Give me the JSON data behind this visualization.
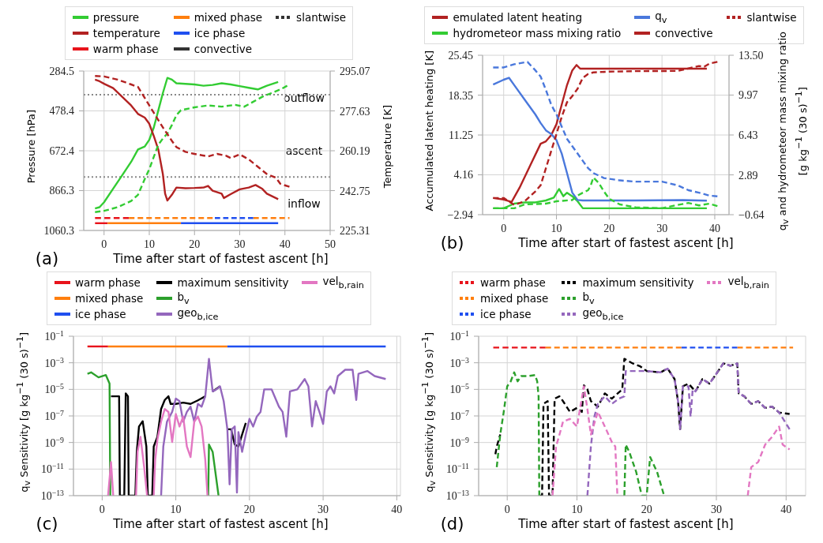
{
  "chart_data": [
    {
      "type": "line",
      "xlabel": "Time after start of fastest ascent [h]",
      "ylabel": "Pressure [hPa]",
      "y2label": "Temperature [K]",
      "legend": "top",
      "grid": true,
      "xlim": [
        -4.5,
        50
      ],
      "xticks": [
        0,
        10,
        20,
        30,
        40,
        50
      ],
      "ylim": [
        1060.3,
        284.5
      ],
      "yticks": [
        284.5,
        478.4,
        672.4,
        866.3,
        1060.3
      ],
      "y2lim": [
        225.31,
        295.07
      ],
      "y2ticks": [
        225.31,
        242.75,
        260.19,
        277.63,
        295.07
      ],
      "ref_lines": [
        {
          "axis": "y",
          "value": 400,
          "color": "#888888",
          "line_style": "dotted"
        },
        {
          "axis": "y",
          "value": 800,
          "color": "#888888",
          "line_style": "dotted"
        }
      ],
      "annotations": [
        "(a)",
        "outflow",
        "ascent",
        "inflow"
      ],
      "series": [
        {
          "name": "pressure",
          "color": "#33cc33",
          "line_style": "solid",
          "x": [
            -2,
            -1,
            0,
            2,
            4,
            6,
            7.5,
            9,
            10,
            11,
            12,
            13,
            14,
            15,
            16,
            18,
            20,
            22,
            24,
            26,
            28,
            30,
            32,
            34,
            36,
            38.5
          ],
          "values": [
            953,
            947,
            923,
            857,
            792,
            726,
            666,
            652,
            619,
            559,
            476,
            392,
            318,
            326,
            344,
            347,
            350,
            356,
            352,
            344,
            350,
            358,
            366,
            374,
            356,
            338
          ]
        },
        {
          "name": "temperature",
          "color": "#b22222",
          "line_style": "solid",
          "axis": "y2",
          "x": [
            -2,
            -1,
            0,
            2,
            4,
            6,
            7.5,
            9,
            10,
            11,
            12,
            13,
            13.5,
            14,
            15,
            16,
            18,
            20,
            22,
            23,
            24,
            26,
            26.5,
            28,
            30,
            32,
            33.5,
            35,
            36,
            38.5
          ],
          "values": [
            291.3,
            290.6,
            289.5,
            287.6,
            283.8,
            280.0,
            276.3,
            274.7,
            272.0,
            266.6,
            260.7,
            250.0,
            241.4,
            238.4,
            240.9,
            244.1,
            243.8,
            243.9,
            244.1,
            244.8,
            242.7,
            241.4,
            239.5,
            241.2,
            243.3,
            244.1,
            245.2,
            243.5,
            241.4,
            239.0
          ]
        },
        {
          "name": "warm phase",
          "color": "#e8131b",
          "line_style": "solid",
          "x": [
            -2,
            0.8
          ],
          "values": [
            1025,
            1025
          ]
        },
        {
          "name": "mixed phase",
          "color": "#ff7f0e",
          "line_style": "solid",
          "x": [
            0.8,
            17
          ],
          "values": [
            1025,
            1025
          ]
        },
        {
          "name": "ice phase",
          "color": "#1f4ff0",
          "line_style": "solid",
          "x": [
            17,
            38.5
          ],
          "values": [
            1025,
            1025
          ]
        },
        {
          "name": "convective",
          "color": "#333333",
          "line_style": "solid"
        },
        {
          "name": "slantwise",
          "color": "#333333",
          "line_style": "dashed"
        },
        {
          "color": "#33cc33",
          "line_style": "dashed",
          "x": [
            -2,
            0,
            3,
            6,
            7.5,
            9,
            10,
            11,
            12,
            13,
            14,
            15,
            16,
            17,
            20,
            23,
            26,
            29,
            31,
            33,
            35,
            37,
            39,
            40.5
          ],
          "values": [
            971,
            965,
            947,
            917,
            887,
            810,
            762,
            702,
            643,
            613,
            589,
            547,
            499,
            475,
            461,
            452,
            458,
            449,
            458,
            434,
            410,
            392,
            374,
            356
          ]
        },
        {
          "color": "#b22222",
          "line_style": "dashed",
          "axis": "y2",
          "x": [
            -2,
            0,
            3,
            6,
            7.5,
            9,
            11,
            13,
            15,
            16,
            18,
            20,
            23,
            25,
            27,
            28,
            30,
            32,
            34,
            36,
            38,
            39,
            41
          ],
          "values": [
            292.9,
            292.7,
            291.3,
            289.2,
            288.1,
            283.3,
            276.8,
            270.4,
            264.5,
            261.8,
            259.7,
            258.8,
            257.7,
            258.8,
            258.0,
            257.0,
            258.6,
            256.4,
            253.2,
            250.0,
            248.4,
            245.7,
            244.4
          ]
        },
        {
          "color": "#e8131b",
          "line_style": "dashed",
          "x": [
            -2,
            5.5
          ],
          "values": [
            1000,
            1000
          ]
        },
        {
          "color": "#ff7f0e",
          "line_style": "dashed",
          "x": [
            5.5,
            24.5,
            29,
            33,
            41
          ],
          "values": [
            1000,
            1000,
            null,
            1000,
            1000
          ]
        },
        {
          "color": "#1f4ff0",
          "line_style": "dashed",
          "x": [
            24.5,
            33
          ],
          "values": [
            1000,
            1000
          ]
        }
      ]
    },
    {
      "type": "line",
      "xlabel": "Time after start of fastest ascent [h]",
      "ylabel": "Accumulated latent heating [K]",
      "y2label": "q$_{v}$ and hydrometeor mass mixing ratio\n[g kg$^{−1}$ (30 s)$^{−1}$]",
      "legend": "top",
      "grid": true,
      "xlim": [
        -4,
        42.7
      ],
      "xticks": [
        0,
        10,
        20,
        30,
        40
      ],
      "ylim": [
        -2.94,
        25.45
      ],
      "yticks": [
        {
          "value": -2.94,
          "label": "−2.94"
        },
        4.16,
        11.25,
        18.35,
        25.45
      ],
      "y2lim": [
        -0.64,
        13.5
      ],
      "y2ticks": [
        {
          "value": -0.64,
          "label": "−0.64"
        },
        2.89,
        6.43,
        9.97,
        {
          "value": 13.5,
          "label": "13.50"
        }
      ],
      "annotations": [
        "(b)"
      ],
      "series": [
        {
          "name": "emulated latent heating",
          "color": "#b22222",
          "line_style": "solid",
          "x": [
            -2,
            0,
            1.5,
            3,
            5,
            7,
            8,
            9,
            10,
            11,
            12,
            13,
            13.8,
            14.5,
            20,
            38.5
          ],
          "values": [
            0.03,
            -0.24,
            -0.67,
            1.85,
            5.77,
            9.69,
            10.12,
            11.21,
            13.17,
            16.66,
            20.14,
            22.75,
            23.71,
            23.06,
            23.06,
            23.06
          ]
        },
        {
          "name": "hydrometeor mass mixing ratio",
          "color": "#33cc33",
          "line_style": "solid",
          "axis": "y2",
          "x": [
            -2,
            0,
            2,
            4,
            6,
            8,
            9.5,
            10.5,
            11.3,
            12,
            13,
            14,
            15,
            38.5
          ],
          "values": [
            -0.07,
            -0.07,
            0.34,
            0.45,
            0.45,
            0.62,
            0.88,
            1.64,
            0.99,
            1.31,
            0.99,
            0.55,
            -0.07,
            -0.07
          ]
        },
        {
          "name": "q$_{v}$",
          "color": "#4a78dc",
          "line_style": "solid",
          "axis": "y2",
          "x": [
            -2,
            0,
            1,
            2,
            4,
            6,
            7,
            8,
            9,
            10,
            11,
            12,
            13,
            14,
            15,
            25,
            34,
            38.5
          ],
          "values": [
            10.9,
            11.33,
            11.5,
            10.85,
            9.55,
            8.25,
            7.49,
            6.84,
            6.52,
            5.97,
            4.78,
            3.05,
            1.31,
            0.66,
            0.62,
            0.62,
            0.66,
            0.6
          ]
        },
        {
          "name": "convective",
          "color": "#b22222",
          "line_style": "solid"
        },
        {
          "name": "slantwise",
          "color": "#b22222",
          "line_style": "dashed"
        },
        {
          "color": "#b22222",
          "line_style": "dashed",
          "x": [
            -2,
            0,
            2,
            4,
            6,
            7,
            8,
            9,
            10,
            11,
            12,
            13,
            14,
            15,
            16,
            17,
            20,
            25,
            33,
            35,
            37,
            38,
            39,
            40.5
          ],
          "values": [
            0.03,
            0.03,
            -1.2,
            -0.54,
            1.2,
            2.29,
            5.33,
            8.38,
            11.43,
            14.48,
            17.09,
            18.18,
            19.48,
            21.44,
            22.1,
            22.4,
            22.53,
            22.62,
            22.66,
            23.1,
            23.53,
            23.4,
            23.97,
            24.27
          ]
        },
        {
          "color": "#33cc33",
          "line_style": "dashed",
          "axis": "y2",
          "x": [
            -2,
            2,
            4,
            8,
            10,
            13,
            14,
            15,
            16,
            16.5,
            17,
            18,
            19,
            20,
            22,
            25,
            30,
            33,
            35,
            37,
            39,
            40.5
          ],
          "values": [
            -0.07,
            -0.07,
            0.27,
            0.34,
            0.55,
            0.66,
            1.05,
            1.31,
            1.53,
            1.96,
            2.66,
            2.18,
            1.42,
            0.77,
            0.27,
            0.01,
            -0.07,
            0.23,
            0.4,
            0.18,
            0.34,
            0.12
          ]
        },
        {
          "color": "#4a78dc",
          "line_style": "dashed",
          "axis": "y2",
          "x": [
            -2,
            0,
            2,
            4.5,
            6,
            7,
            8,
            9,
            10,
            11,
            12,
            13,
            14,
            15,
            16,
            17,
            19,
            22,
            25,
            30,
            33,
            35,
            37,
            39,
            40.5
          ],
          "values": [
            12.42,
            12.42,
            12.7,
            12.91,
            12.16,
            11.61,
            10.42,
            9.12,
            8.25,
            7.17,
            6.08,
            5.43,
            4.78,
            4.13,
            3.48,
            3.05,
            2.61,
            2.4,
            2.29,
            2.29,
            1.96,
            1.53,
            1.31,
            1.05,
            0.99
          ]
        }
      ]
    },
    {
      "type": "line",
      "xlabel": "Time after start of fastest ascent [h]",
      "ylabel": "q$_{v}$ Sensitivity [g kg$^{−1}$ (30 s)$^{−1}$]",
      "legend": "top",
      "grid": true,
      "log": true,
      "xlim": [
        -3.9,
        40.5
      ],
      "xticks": [
        0,
        10,
        20,
        30,
        40
      ],
      "ylim": [
        1e-13,
        0.1
      ],
      "yticks": [
        {
          "value": 1e-13,
          "label": "10$^{−13}$"
        },
        {
          "value": 1e-11,
          "label": "10$^{−11}$"
        },
        {
          "value": 1e-09,
          "label": "10$^{−9}$"
        },
        {
          "value": 1e-07,
          "label": "10$^{−7}$"
        },
        {
          "value": 1e-05,
          "label": "10$^{−5}$"
        },
        {
          "value": 0.001,
          "label": "10$^{−3}$"
        },
        {
          "value": 0.1,
          "label": "10$^{−1}$"
        }
      ],
      "annotations": [
        "(c)"
      ],
      "series": [
        {
          "name": "warm phase",
          "color": "#e8131b",
          "line_style": "solid",
          "x": [
            -2,
            0.8
          ],
          "values": [
            0.017,
            0.017
          ]
        },
        {
          "name": "mixed phase",
          "color": "#ff7f0e",
          "line_style": "solid",
          "x": [
            0.8,
            17
          ],
          "values": [
            0.017,
            0.017
          ]
        },
        {
          "name": "ice phase",
          "color": "#1f4ff0",
          "line_style": "solid",
          "x": [
            17,
            38.5
          ],
          "values": [
            0.017,
            0.017
          ]
        },
        {
          "name": "maximum sensitivity",
          "color": "#000000",
          "line_style": "solid",
          "x": [
            1.2,
            2.3,
            2.4,
            3.0,
            3.2,
            3.5,
            3.6,
            4.5,
            4.7,
            5.0,
            5.5,
            6.0,
            6.2,
            6.8,
            7.0,
            7.5,
            8.0,
            8.5,
            9.0,
            9.3,
            10.0,
            11.0,
            12.0,
            13.0,
            14.0,
            14.5,
            15.0,
            16.0,
            16.5,
            17.0,
            17.5,
            18.0,
            18.5,
            19.0,
            19.5
          ],
          "values": [
            3e-06,
            3e-06,
            1e-13,
            1e-13,
            5e-06,
            3e-06,
            1e-13,
            1e-13,
            2e-10,
            1.6e-08,
            4e-08,
            5e-10,
            1e-13,
            1e-13,
            5e-10,
            2.7e-09,
            3.3e-07,
            1.6e-06,
            3e-06,
            8e-07,
            8e-07,
            1e-06,
            8e-07,
            1.5e-06,
            3e-06,
            null,
            7e-06,
            1.7e-05,
            null,
            1e-08,
            1e-08,
            7e-10,
            5e-10,
            4e-09,
            3e-08
          ]
        },
        {
          "name": "b$_{v}$",
          "color": "#2ca02c",
          "line_style": "solid",
          "x": [
            -2,
            -1.5,
            -0.5,
            0.5,
            1.0,
            1.1,
            8,
            14.4,
            14.5,
            15.0,
            15.8
          ],
          "values": [
            0.00015,
            0.00019,
            8e-05,
            0.00012,
            2.7e-05,
            1e-13,
            null,
            1e-13,
            7e-10,
            2e-10,
            1e-13
          ]
        },
        {
          "name": "geo$_{b,ice}$",
          "color": "#9467bd",
          "line_style": "solid",
          "x": [
            8,
            8.3,
            8.8,
            9.5,
            10,
            10.5,
            11,
            11.5,
            12,
            12.5,
            13,
            13.5,
            14,
            14.5,
            15,
            15.5,
            16,
            16.5,
            17,
            17.3,
            17.6,
            18,
            18.3,
            18.5,
            19,
            19.5,
            20,
            20.5,
            21,
            21.5,
            22,
            23,
            24,
            24.5,
            25,
            25.5,
            26.5,
            27.5,
            28,
            28.5,
            29,
            29.5,
            30,
            30.5,
            31,
            31.5,
            32,
            33,
            34,
            34.5,
            34.8,
            36,
            37,
            38.5
          ],
          "values": [
            1e-13,
            5e-10,
            3.7e-08,
            2e-07,
            2e-06,
            1.3e-06,
            3.7e-08,
            2e-07,
            5e-07,
            3.7e-08,
            8e-07,
            5e-07,
            3e-06,
            0.002,
            7e-06,
            1e-05,
            1.7e-05,
            1.3e-06,
            1e-08,
            7e-13,
            1e-08,
            1.6e-08,
            1.7e-13,
            6e-09,
            2e-10,
            4e-09,
            6e-08,
            1.6e-08,
            9e-08,
            2e-07,
            1e-05,
            1e-05,
            5e-07,
            2e-07,
            2.7e-09,
            7e-06,
            1e-05,
            6e-05,
            1.7e-05,
            1.6e-08,
            1.3e-06,
            2e-07,
            2.5e-08,
            7e-06,
            1.7e-05,
            5e-06,
            0.0001,
            0.0003,
            0.0003,
            1.6e-06,
            0.00015,
            0.00024,
            0.0001,
            6e-05
          ]
        },
        {
          "name": "vel$_{b,rain}$",
          "color": "#e377c2",
          "line_style": "solid",
          "x": [
            0.8,
            1.2,
            1.5,
            3,
            4.6,
            4.8,
            5.2,
            5.7,
            6.1,
            6.6,
            7.0,
            7.2,
            7.5,
            8,
            8.5,
            9,
            9.5,
            10,
            10.5,
            11,
            11.5,
            12,
            12.5,
            13,
            13.5,
            14,
            14.3
          ],
          "values": [
            1e-13,
            3.4e-11,
            1e-13,
            null,
            1e-13,
            2e-10,
            2.7e-09,
            1.4e-11,
            1e-13,
            null,
            1e-13,
            5e-11,
            1.7e-09,
            3.7e-08,
            3.3e-07,
            2e-07,
            1.1e-09,
            1.4e-07,
            1.6e-08,
            9e-08,
            5e-10,
            8e-11,
            3.7e-08,
            9e-08,
            1.6e-08,
            5e-11,
            1e-13
          ]
        }
      ]
    },
    {
      "type": "line",
      "xlabel": "Time after start of fastest ascent [h]",
      "ylabel": "q$_{v}$ Sensitivity [g kg$^{−1}$ (30 s)$^{−1}$]",
      "legend": "top",
      "grid": true,
      "log": true,
      "xlim": [
        -4.1,
        42.8
      ],
      "xticks": [
        0,
        10,
        20,
        30,
        40
      ],
      "ylim": [
        1e-13,
        0.1
      ],
      "yticks": [
        {
          "value": 1e-13,
          "label": "10$^{−13}$"
        },
        {
          "value": 1e-11,
          "label": "10$^{−11}$"
        },
        {
          "value": 1e-09,
          "label": "10$^{−9}$"
        },
        {
          "value": 1e-07,
          "label": "10$^{−7}$"
        },
        {
          "value": 1e-05,
          "label": "10$^{−5}$"
        },
        {
          "value": 0.001,
          "label": "10$^{−3}$"
        },
        {
          "value": 0.1,
          "label": "10$^{−1}$"
        }
      ],
      "annotations": [
        "(d)"
      ],
      "series": [
        {
          "name": "warm phase",
          "color": "#e8131b",
          "line_style": "dashed",
          "x": [
            -2,
            5.5
          ],
          "values": [
            0.014,
            0.014
          ]
        },
        {
          "name": "mixed phase",
          "color": "#ff7f0e",
          "line_style": "dashed",
          "x": [
            5.5,
            25,
            29,
            33,
            41
          ],
          "values": [
            0.014,
            0.014,
            null,
            0.014,
            0.014
          ]
        },
        {
          "name": "ice phase",
          "color": "#1f4ff0",
          "line_style": "dashed",
          "x": [
            25,
            33
          ],
          "values": [
            0.014,
            0.014
          ]
        },
        {
          "name": "maximum sensitivity",
          "color": "#000000",
          "line_style": "dashed",
          "x": [
            -1.7,
            -1.5,
            -1,
            0,
            4.6,
            5,
            5.2,
            5.8,
            6,
            6.5,
            6.8,
            7.5,
            8,
            9,
            10,
            10.7,
            11,
            11.5,
            12,
            13,
            14,
            15,
            16.5,
            16.8,
            18,
            19,
            20,
            22,
            23,
            24,
            24.5,
            24.8,
            25.2,
            26,
            27,
            28,
            29,
            30,
            31,
            32,
            33,
            33.2,
            34,
            35,
            36,
            37,
            38,
            39,
            40.5
          ],
          "values": [
            1.3e-10,
            5e-10,
            4e-09,
            null,
            1e-13,
            1e-13,
            8e-07,
            1.3e-06,
            1e-13,
            1e-13,
            2e-06,
            3e-06,
            1.3e-06,
            2e-07,
            4e-07,
            2e-07,
            2e-05,
            1e-05,
            1.3e-06,
            5e-07,
            5e-06,
            2e-06,
            1e-05,
            0.002,
            0.0009,
            0.00057,
            0.00024,
            0.00019,
            0.00037,
            6e-05,
            1.3e-06,
            1e-08,
            1.7e-05,
            2.7e-05,
            7e-06,
            6e-05,
            2.7e-05,
            0.00015,
            0.0009,
            0.0006,
            0.0009,
            5e-06,
            3e-06,
            8e-07,
            1.3e-06,
            4e-07,
            5e-07,
            1.8e-07,
            1.4e-07
          ]
        },
        {
          "name": "b$_{v}$",
          "color": "#2ca02c",
          "line_style": "dashed",
          "x": [
            -1.5,
            -1,
            -0.5,
            0,
            0.5,
            1,
            1.5,
            2,
            3,
            4,
            4.3,
            4.5,
            4.6,
            10,
            16.8,
            17,
            17.5,
            18.5,
            19.3,
            20,
            20.5,
            21.5,
            22.5
          ],
          "values": [
            1.4e-11,
            4e-09,
            2e-07,
            1.7e-05,
            4e-05,
            0.00019,
            4e-05,
            0.0001,
            0.0001,
            0.00012,
            4e-05,
            3e-06,
            1e-13,
            null,
            1e-13,
            7e-10,
            2e-10,
            6e-12,
            1e-13,
            1e-13,
            8e-11,
            6e-12,
            1e-13
          ]
        },
        {
          "name": "geo$_{b,ice}$",
          "color": "#9467bd",
          "line_style": "dashed",
          "x": [
            11.5,
            12,
            12.5,
            13,
            14,
            15,
            16,
            16.8,
            17,
            19,
            20,
            22,
            23,
            24,
            24.5,
            24.8,
            25.2,
            26,
            26.3,
            26.6,
            27,
            28,
            29,
            30,
            31,
            32,
            33,
            33.2,
            34,
            35,
            36,
            37,
            38,
            39,
            40.5
          ],
          "values": [
            1e-13,
            5e-10,
            9e-08,
            8e-07,
            3e-06,
            8e-07,
            2e-06,
            3e-06,
            0.00024,
            0.00024,
            0.00024,
            0.00019,
            0.00037,
            6e-05,
            1.3e-06,
            1e-08,
            1.7e-05,
            1.7e-05,
            9e-08,
            1e-05,
            7e-06,
            6e-05,
            2.7e-05,
            0.00015,
            0.0009,
            0.0006,
            0.0009,
            5e-06,
            3e-06,
            8e-07,
            1.3e-06,
            4e-07,
            5e-07,
            1.8e-07,
            1e-08
          ]
        },
        {
          "name": "vel$_{b,rain}$",
          "color": "#e377c2",
          "line_style": "dashed",
          "x": [
            6.5,
            7,
            7.5,
            8,
            9,
            10,
            11,
            11.5,
            12,
            13,
            14,
            15,
            15.5,
            15.8,
            25,
            34.5,
            35,
            36,
            37,
            38,
            39,
            39.5,
            40.5
          ],
          "values": [
            1e-13,
            5e-10,
            4e-09,
            3.7e-08,
            6e-08,
            1.6e-08,
            1.7e-05,
            3.3e-07,
            4e-09,
            2e-07,
            1.6e-08,
            1.1e-09,
            5e-10,
            1e-13,
            null,
            1e-13,
            1.4e-11,
            3.4e-11,
            7e-10,
            2.7e-09,
            1.6e-08,
            7e-10,
            3e-10
          ]
        }
      ]
    }
  ]
}
